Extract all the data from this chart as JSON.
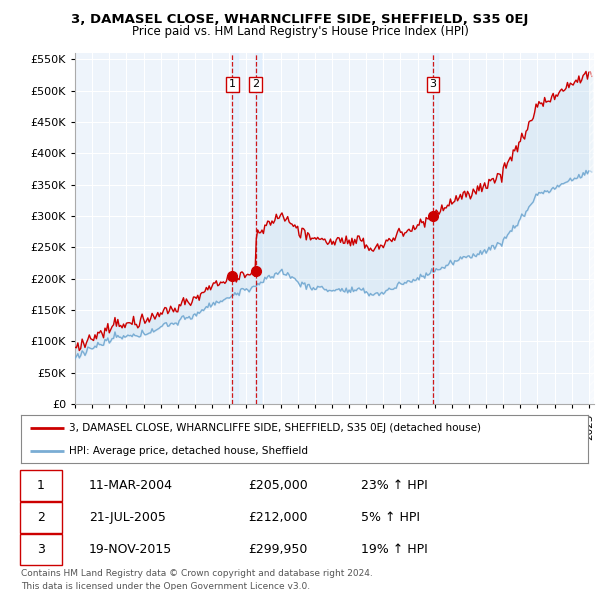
{
  "title1": "3, DAMASEL CLOSE, WHARNCLIFFE SIDE, SHEFFIELD, S35 0EJ",
  "title2": "Price paid vs. HM Land Registry's House Price Index (HPI)",
  "ylim": [
    0,
    560000
  ],
  "yticks": [
    0,
    50000,
    100000,
    150000,
    200000,
    250000,
    300000,
    350000,
    400000,
    450000,
    500000,
    550000
  ],
  "xlim_start": 1995.0,
  "xlim_end": 2025.3,
  "sale_dates": [
    2004.19,
    2005.55,
    2015.89
  ],
  "sale_prices": [
    205000,
    212000,
    299950
  ],
  "sale_labels": [
    "1",
    "2",
    "3"
  ],
  "legend_house": "3, DAMASEL CLOSE, WHARNCLIFFE SIDE, SHEFFIELD, S35 0EJ (detached house)",
  "legend_hpi": "HPI: Average price, detached house, Sheffield",
  "table_data": [
    [
      "1",
      "11-MAR-2004",
      "£205,000",
      "23% ↑ HPI"
    ],
    [
      "2",
      "21-JUL-2005",
      "£212,000",
      "5% ↑ HPI"
    ],
    [
      "3",
      "19-NOV-2015",
      "£299,950",
      "19% ↑ HPI"
    ]
  ],
  "footnote1": "Contains HM Land Registry data © Crown copyright and database right 2024.",
  "footnote2": "This data is licensed under the Open Government Licence v3.0.",
  "house_color": "#cc0000",
  "hpi_color": "#7aadd4",
  "bg_color": "#ffffff",
  "plot_bg_color": "#eef4fb",
  "grid_color": "#ffffff",
  "sale_vline_color": "#cc0000"
}
